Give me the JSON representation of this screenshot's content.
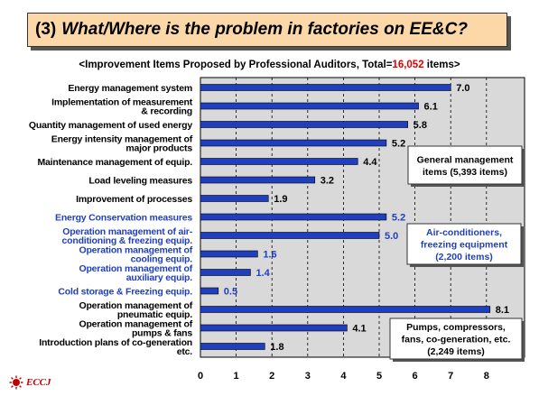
{
  "header": {
    "number": "(3)",
    "title": "What/Where is the problem in factories on EE&C?"
  },
  "subtitle": {
    "prefix": "<Improvement Items Proposed by Professional Auditors, Total=",
    "total": "16,052",
    "suffix": " items>"
  },
  "logo": {
    "text": "ECCJ"
  },
  "colors": {
    "bar": "#1f3fbf",
    "blue_label": "#1f3fbf",
    "plot_bg": "#d9d9d9"
  },
  "chart_data": {
    "type": "bar",
    "orientation": "horizontal",
    "xlim": [
      0,
      8.5
    ],
    "xticks": [
      "0",
      "1",
      "2",
      "3",
      "4",
      "5",
      "6",
      "7",
      "8"
    ],
    "grid": "vertical-dashed",
    "rows": [
      {
        "label": [
          "Energy management system"
        ],
        "value": 7.0,
        "value_label": "7.0",
        "blue": false
      },
      {
        "label": [
          "Implementation of measurement",
          "& recording"
        ],
        "value": 6.1,
        "value_label": "6.1",
        "blue": false
      },
      {
        "label": [
          "Quantity management of used energy"
        ],
        "value": 5.8,
        "value_label": "5.8",
        "blue": false
      },
      {
        "label": [
          "Energy intensity management of",
          "major products"
        ],
        "value": 5.2,
        "value_label": "5.2",
        "blue": false
      },
      {
        "label": [
          "Maintenance management of equip."
        ],
        "value": 4.4,
        "value_label": "4.4",
        "blue": false
      },
      {
        "label": [
          "Load leveling measures"
        ],
        "value": 3.2,
        "value_label": "3.2",
        "blue": false
      },
      {
        "label": [
          "Improvement of processes"
        ],
        "value": 1.9,
        "value_label": "1.9",
        "blue": false
      },
      {
        "label": [
          "Energy Conservation measures"
        ],
        "value": 5.2,
        "value_label": "5.2",
        "blue": true
      },
      {
        "label": [
          "Operation management of air-",
          "conditioning & freezing equip."
        ],
        "value": 5.0,
        "value_label": "5.0",
        "blue": true
      },
      {
        "label": [
          "Operation management of",
          "cooling equip."
        ],
        "value": 1.6,
        "value_label": "1.6",
        "blue": true
      },
      {
        "label": [
          "Operation management of",
          "auxiliary equip."
        ],
        "value": 1.4,
        "value_label": "1.4",
        "blue": true
      },
      {
        "label": [
          "Cold storage & Freezing equip."
        ],
        "value": 0.5,
        "value_label": "0.5",
        "blue": true
      },
      {
        "label": [
          "Operation management of",
          "pneumatic equip."
        ],
        "value": 8.1,
        "value_label": "8.1",
        "blue": false
      },
      {
        "label": [
          "Operation management of",
          "pumps & fans"
        ],
        "value": 4.1,
        "value_label": "4.1",
        "blue": false
      },
      {
        "label": [
          "Introduction plans of co-generation",
          "etc."
        ],
        "value": 1.8,
        "value_label": "1.8",
        "blue": false
      }
    ],
    "annotations": [
      {
        "lines": [
          "General management",
          "items (5,393 items)"
        ],
        "blue": false
      },
      {
        "lines": [
          "Air-conditioners,",
          "freezing equipment",
          "(2,200 items)"
        ],
        "blue": true
      },
      {
        "lines": [
          "Pumps, compressors,",
          "fans, co-generation, etc.",
          "(2,249 items)"
        ],
        "blue": false
      }
    ]
  }
}
